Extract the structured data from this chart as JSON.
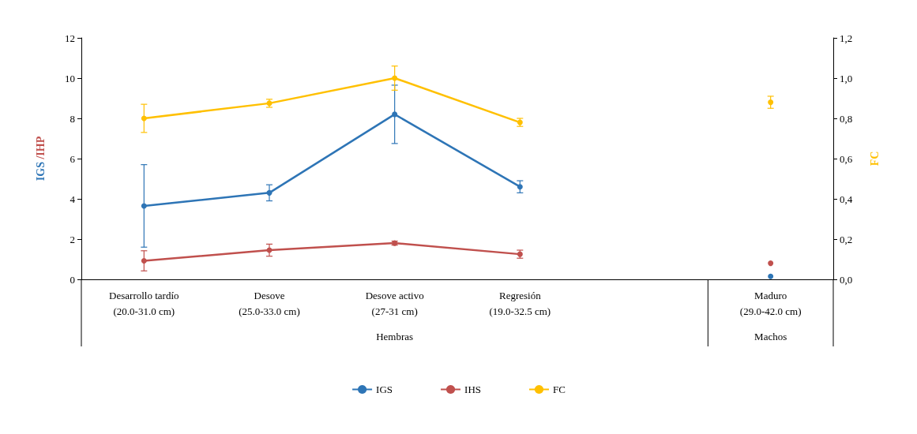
{
  "chart_data": {
    "type": "line",
    "ylabel": "IGS /IHP",
    "y2label": "FC",
    "categories": [
      "Desarrollo tardío\n(20.0-31.0 cm)",
      "Desove\n(25.0-33.0 cm)",
      "Desove activo\n(27-31 cm)",
      "Regresión\n(19.0-32.5 cm)",
      null,
      "Maduro\n(29.0-42.0 cm)"
    ],
    "series": [
      {
        "name": "IGS",
        "color": "#2e75b6",
        "values": [
          3.65,
          4.3,
          8.2,
          4.6,
          null,
          0.15
        ],
        "errors": [
          2.05,
          0.4,
          1.45,
          0.3,
          null,
          null
        ]
      },
      {
        "name": "IHS",
        "color": "#c0504d",
        "values": [
          0.92,
          1.45,
          1.8,
          1.25,
          null,
          0.8
        ],
        "errors": [
          0.5,
          0.3,
          0.1,
          0.2,
          null,
          null
        ]
      },
      {
        "name": "FC",
        "color": "#ffc000",
        "axis": "y2",
        "values": [
          0.8,
          0.875,
          1.0,
          0.78,
          null,
          0.88
        ],
        "errors": [
          0.07,
          0.02,
          0.06,
          0.02,
          null,
          0.03
        ]
      }
    ],
    "ylim": [
      0,
      12
    ],
    "yticks": [
      0,
      2,
      4,
      6,
      8,
      10,
      12
    ],
    "y2lim": [
      0,
      1.2
    ],
    "y2ticks": [
      {
        "value": 0,
        "label": "0,0"
      },
      {
        "value": 0.2,
        "label": "0,2"
      },
      {
        "value": 0.4,
        "label": "0,4"
      },
      {
        "value": 0.6,
        "label": "0,6"
      },
      {
        "value": 0.8,
        "label": "0,8"
      },
      {
        "value": 1.0,
        "label": "1,0"
      },
      {
        "value": 1.2,
        "label": "1,2"
      }
    ],
    "annotations": [
      "Hembras",
      "Machos"
    ],
    "legend": "bottom",
    "marker": "circle",
    "grid": false
  }
}
